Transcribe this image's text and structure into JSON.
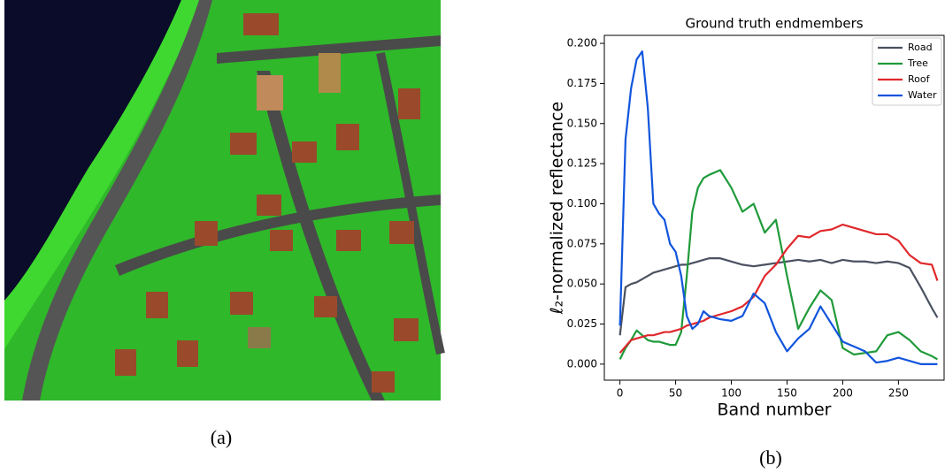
{
  "captions": [
    "(a)",
    "(b)"
  ],
  "chart_data": {
    "type": "line",
    "title": "Ground truth endmembers",
    "xlabel": "Band number",
    "ylabel": "ℓ₂-normalized reflectance",
    "x": [
      0,
      5,
      10,
      15,
      20,
      25,
      30,
      35,
      40,
      45,
      50,
      55,
      60,
      65,
      70,
      75,
      80,
      90,
      100,
      110,
      120,
      130,
      140,
      150,
      160,
      170,
      180,
      190,
      200,
      210,
      220,
      230,
      240,
      250,
      260,
      270,
      280,
      285
    ],
    "series": [
      {
        "name": "Road",
        "color": "#4a5160",
        "values": [
          0.018,
          0.048,
          0.05,
          0.051,
          0.053,
          0.055,
          0.057,
          0.058,
          0.059,
          0.06,
          0.061,
          0.062,
          0.062,
          0.063,
          0.064,
          0.065,
          0.066,
          0.066,
          0.064,
          0.062,
          0.061,
          0.062,
          0.063,
          0.064,
          0.065,
          0.064,
          0.065,
          0.063,
          0.065,
          0.064,
          0.064,
          0.063,
          0.064,
          0.063,
          0.06,
          0.048,
          0.035,
          0.029
        ]
      },
      {
        "name": "Tree",
        "color": "#1f9a3a",
        "values": [
          0.003,
          0.01,
          0.015,
          0.021,
          0.018,
          0.015,
          0.014,
          0.014,
          0.013,
          0.012,
          0.012,
          0.02,
          0.055,
          0.095,
          0.11,
          0.116,
          0.118,
          0.121,
          0.11,
          0.095,
          0.1,
          0.082,
          0.09,
          0.055,
          0.022,
          0.035,
          0.046,
          0.04,
          0.01,
          0.006,
          0.007,
          0.008,
          0.018,
          0.02,
          0.015,
          0.008,
          0.005,
          0.003
        ]
      },
      {
        "name": "Roof",
        "color": "#e0282c",
        "values": [
          0.007,
          0.011,
          0.015,
          0.016,
          0.017,
          0.018,
          0.018,
          0.019,
          0.02,
          0.02,
          0.021,
          0.022,
          0.024,
          0.025,
          0.026,
          0.027,
          0.029,
          0.031,
          0.033,
          0.036,
          0.042,
          0.055,
          0.062,
          0.072,
          0.08,
          0.079,
          0.083,
          0.084,
          0.087,
          0.085,
          0.083,
          0.081,
          0.081,
          0.077,
          0.068,
          0.063,
          0.062,
          0.052
        ]
      },
      {
        "name": "Water",
        "color": "#1155dd",
        "values": [
          0.024,
          0.14,
          0.172,
          0.19,
          0.195,
          0.16,
          0.1,
          0.094,
          0.09,
          0.075,
          0.07,
          0.055,
          0.03,
          0.022,
          0.025,
          0.033,
          0.03,
          0.028,
          0.027,
          0.03,
          0.044,
          0.038,
          0.02,
          0.008,
          0.016,
          0.022,
          0.036,
          0.025,
          0.014,
          0.011,
          0.008,
          0.001,
          0.002,
          0.004,
          0.002,
          0.0,
          0.0,
          0.0
        ]
      }
    ],
    "xlim": [
      -14,
      291
    ],
    "xticks": [
      0,
      50,
      100,
      150,
      200,
      250
    ],
    "ylim": [
      -0.01,
      0.205
    ],
    "yticks": [
      {
        "value": 0,
        "label": "0.000"
      },
      {
        "value": 0.025,
        "label": "0.025"
      },
      {
        "value": 0.05,
        "label": "0.050"
      },
      {
        "value": 0.075,
        "label": "0.075"
      },
      {
        "value": 0.1,
        "label": "0.100"
      },
      {
        "value": 0.125,
        "label": "0.125"
      },
      {
        "value": 0.15,
        "label": "0.150"
      },
      {
        "value": 0.175,
        "label": "0.175"
      },
      {
        "value": 0.2,
        "label": "0.200"
      }
    ],
    "legend": "upper right"
  }
}
